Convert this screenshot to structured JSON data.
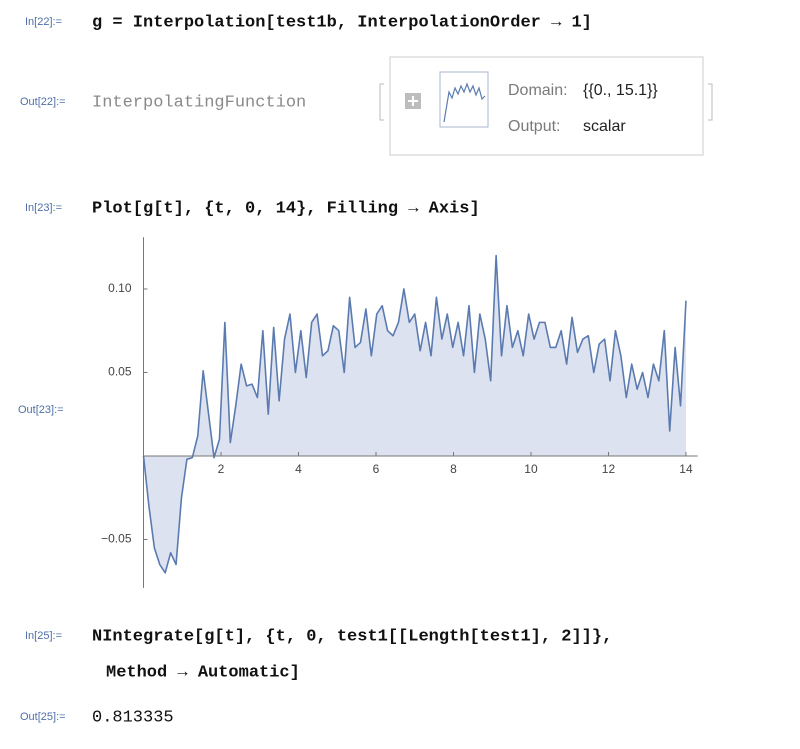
{
  "cells": [
    {
      "label": "In[22]:=",
      "code": [
        "g = Interpolation[test1b, InterpolationOrder → 1]"
      ]
    },
    {
      "label": "Out[22]:=",
      "head": "InterpolatingFunction",
      "domain_label": "Domain:",
      "domain": "{{0., 15.1}}",
      "output_label": "Output:",
      "output": "scalar"
    },
    {
      "label": "In[23]:=",
      "code": [
        "Plot[g[t], {t, 0, 14}, Filling → Axis]"
      ]
    },
    {
      "label": "Out[23]:="
    },
    {
      "label": "In[25]:=",
      "code": [
        "NIntegrate[g[t], {t, 0, test1[[Length[test1], 2]]},",
        "Method → Automatic]"
      ]
    },
    {
      "label": "Out[25]:=",
      "result": "0.813335"
    }
  ],
  "chart_data": {
    "type": "line",
    "filling": "axis",
    "color": "#5b7bb0",
    "fill_color": "#dce2ef",
    "x": [
      0,
      0.14,
      0.28,
      0.42,
      0.56,
      0.7,
      0.84,
      0.98,
      1.12,
      1.26,
      1.4,
      1.54,
      1.68,
      1.82,
      1.96,
      2.1,
      2.24,
      2.38,
      2.52,
      2.66,
      2.8,
      2.94,
      3.08,
      3.22,
      3.36,
      3.5,
      3.64,
      3.78,
      3.92,
      4.06,
      4.2,
      4.34,
      4.48,
      4.62,
      4.76,
      4.9,
      5.04,
      5.18,
      5.32,
      5.46,
      5.6,
      5.74,
      5.88,
      6.02,
      6.16,
      6.3,
      6.44,
      6.58,
      6.72,
      6.86,
      7.0,
      7.14,
      7.28,
      7.42,
      7.56,
      7.7,
      7.84,
      7.98,
      8.12,
      8.26,
      8.4,
      8.54,
      8.68,
      8.82,
      8.96,
      9.1,
      9.24,
      9.38,
      9.52,
      9.66,
      9.8,
      9.94,
      10.08,
      10.22,
      10.36,
      10.5,
      10.64,
      10.78,
      10.92,
      11.06,
      11.2,
      11.34,
      11.48,
      11.62,
      11.76,
      11.9,
      12.04,
      12.18,
      12.32,
      12.46,
      12.6,
      12.74,
      12.88,
      13.02,
      13.16,
      13.3,
      13.44,
      13.58,
      13.72,
      13.86,
      14.0
    ],
    "values": [
      0,
      -0.03,
      -0.055,
      -0.065,
      -0.07,
      -0.058,
      -0.065,
      -0.025,
      -0.002,
      -0.001,
      0.012,
      0.051,
      0.025,
      -0.001,
      0.01,
      0.08,
      0.008,
      0.03,
      0.055,
      0.042,
      0.043,
      0.035,
      0.075,
      0.025,
      0.077,
      0.033,
      0.07,
      0.085,
      0.05,
      0.075,
      0.047,
      0.08,
      0.085,
      0.06,
      0.063,
      0.078,
      0.075,
      0.05,
      0.095,
      0.065,
      0.068,
      0.088,
      0.06,
      0.085,
      0.09,
      0.075,
      0.072,
      0.08,
      0.1,
      0.08,
      0.085,
      0.063,
      0.08,
      0.06,
      0.095,
      0.07,
      0.085,
      0.065,
      0.08,
      0.06,
      0.09,
      0.05,
      0.085,
      0.07,
      0.045,
      0.12,
      0.06,
      0.09,
      0.065,
      0.075,
      0.06,
      0.085,
      0.07,
      0.08,
      0.08,
      0.065,
      0.065,
      0.075,
      0.055,
      0.083,
      0.062,
      0.07,
      0.072,
      0.05,
      0.067,
      0.07,
      0.045,
      0.075,
      0.06,
      0.035,
      0.055,
      0.04,
      0.05,
      0.035,
      0.055,
      0.045,
      0.075,
      0.015,
      0.065,
      0.03,
      0.093
    ],
    "xlim": [
      0,
      14.3
    ],
    "ylim": [
      -0.079,
      0.131
    ],
    "xticks": [
      2,
      4,
      6,
      8,
      10,
      12,
      14
    ],
    "yticks": [
      {
        "value": -0.05,
        "label": "−0.05"
      },
      0.05,
      {
        "value": 0.1,
        "label": "0.10"
      }
    ]
  }
}
